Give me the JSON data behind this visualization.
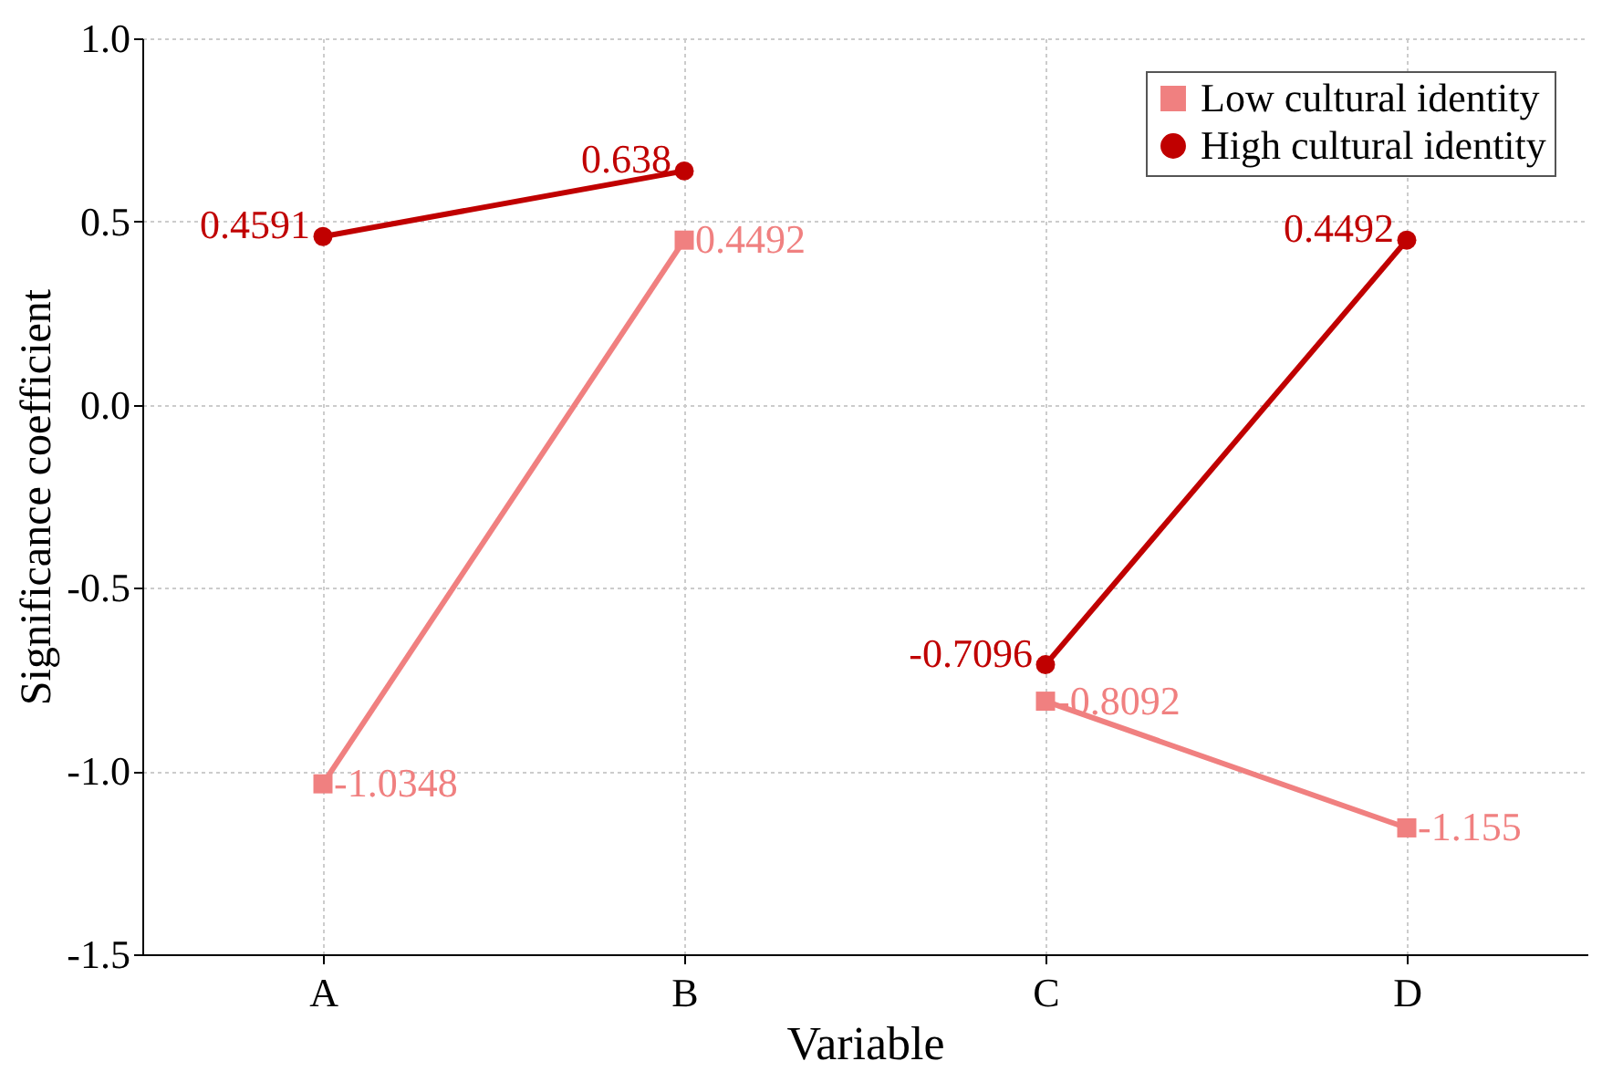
{
  "chart_data": {
    "type": "line",
    "xlabel": "Variable",
    "ylabel": "Significance coefficient",
    "categories": [
      "A",
      "B",
      "C",
      "D"
    ],
    "series": [
      {
        "name": "Low cultural identity",
        "color": "#f08080",
        "marker": "square",
        "x": [
          "A",
          "B"
        ],
        "values": [
          -1.0348,
          0.4492
        ]
      },
      {
        "name": "High cultural identity",
        "color": "#c00000",
        "marker": "circle",
        "x": [
          "A",
          "B"
        ],
        "values": [
          0.4591,
          0.638
        ]
      },
      {
        "color": "#f08080",
        "marker": "square",
        "x": [
          "C",
          "D"
        ],
        "values": [
          -0.8092,
          -1.155
        ]
      },
      {
        "color": "#c00000",
        "marker": "circle",
        "x": [
          "C",
          "D"
        ],
        "values": [
          -0.7096,
          0.4492
        ]
      }
    ],
    "ylim": [
      -1.5,
      1.0
    ],
    "yticks": [
      {
        "value": -1.5,
        "label": "-1.5"
      },
      {
        "value": -1.0,
        "label": "-1.0"
      },
      {
        "value": -0.5,
        "label": "-0.5"
      },
      {
        "value": 0,
        "label": "0.0"
      },
      {
        "value": 0.5,
        "label": "0.5"
      },
      {
        "value": 1.0,
        "label": "1.0"
      }
    ],
    "grid": true,
    "legend": "top right",
    "data_labels": true,
    "line_style": "solid"
  }
}
